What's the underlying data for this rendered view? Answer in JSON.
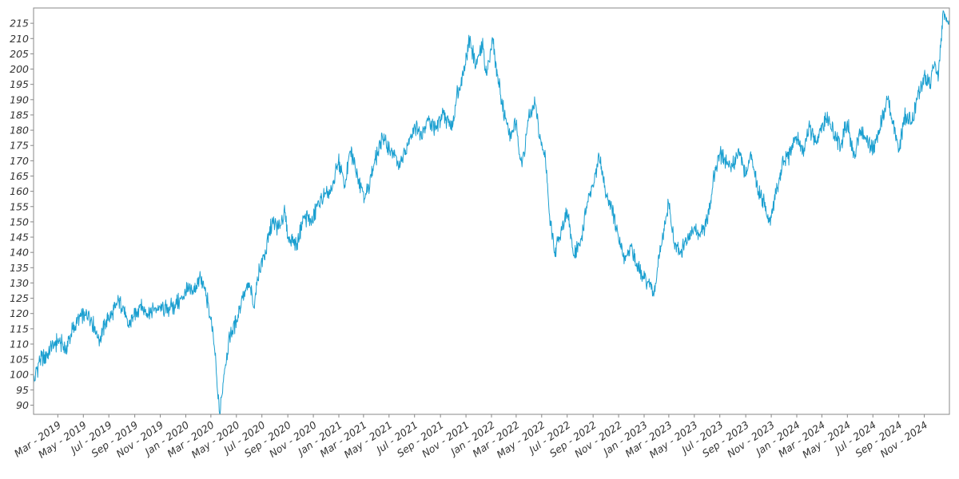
{
  "chart_data": {
    "type": "line",
    "title": "",
    "xlabel": "",
    "ylabel": "",
    "x_range": [
      "2019-01-02",
      "2024-12-31"
    ],
    "ylim": [
      87,
      220
    ],
    "grid": false,
    "legend": "none",
    "y_ticks": [
      90,
      95,
      100,
      105,
      110,
      115,
      120,
      125,
      130,
      135,
      140,
      145,
      150,
      155,
      160,
      165,
      170,
      175,
      180,
      185,
      190,
      195,
      200,
      205,
      210,
      215
    ],
    "x_ticks": [
      {
        "date": "2019-03-01",
        "label": "Mar - 2019"
      },
      {
        "date": "2019-05-01",
        "label": "May - 2019"
      },
      {
        "date": "2019-07-01",
        "label": "Jul - 2019"
      },
      {
        "date": "2019-09-01",
        "label": "Sep - 2019"
      },
      {
        "date": "2019-11-01",
        "label": "Nov - 2019"
      },
      {
        "date": "2020-01-01",
        "label": "Jan - 2020"
      },
      {
        "date": "2020-03-01",
        "label": "Mar - 2020"
      },
      {
        "date": "2020-05-01",
        "label": "May - 2020"
      },
      {
        "date": "2020-07-01",
        "label": "Jul - 2020"
      },
      {
        "date": "2020-09-01",
        "label": "Sep - 2020"
      },
      {
        "date": "2020-11-01",
        "label": "Nov - 2020"
      },
      {
        "date": "2021-01-01",
        "label": "Jan - 2021"
      },
      {
        "date": "2021-03-01",
        "label": "Mar - 2021"
      },
      {
        "date": "2021-05-01",
        "label": "May - 2021"
      },
      {
        "date": "2021-07-01",
        "label": "Jul - 2021"
      },
      {
        "date": "2021-09-01",
        "label": "Sep - 2021"
      },
      {
        "date": "2021-11-01",
        "label": "Nov - 2021"
      },
      {
        "date": "2022-01-01",
        "label": "Jan - 2022"
      },
      {
        "date": "2022-03-01",
        "label": "Mar - 2022"
      },
      {
        "date": "2022-05-01",
        "label": "May - 2022"
      },
      {
        "date": "2022-07-01",
        "label": "Jul - 2022"
      },
      {
        "date": "2022-09-01",
        "label": "Sep - 2022"
      },
      {
        "date": "2022-11-01",
        "label": "Nov - 2022"
      },
      {
        "date": "2023-01-01",
        "label": "Jan - 2023"
      },
      {
        "date": "2023-03-01",
        "label": "Mar - 2023"
      },
      {
        "date": "2023-05-01",
        "label": "May - 2023"
      },
      {
        "date": "2023-07-01",
        "label": "Jul - 2023"
      },
      {
        "date": "2023-09-01",
        "label": "Sep - 2023"
      },
      {
        "date": "2023-11-01",
        "label": "Nov - 2023"
      },
      {
        "date": "2024-01-01",
        "label": "Jan - 2024"
      },
      {
        "date": "2024-03-01",
        "label": "Mar - 2024"
      },
      {
        "date": "2024-05-01",
        "label": "May - 2024"
      },
      {
        "date": "2024-07-01",
        "label": "Jul - 2024"
      },
      {
        "date": "2024-09-01",
        "label": "Sep - 2024"
      },
      {
        "date": "2024-11-01",
        "label": "Nov - 2024"
      }
    ],
    "series": [
      {
        "color": "#1a9fd0",
        "x": [
          "2019-01-02",
          "2019-01-15",
          "2019-02-01",
          "2019-02-20",
          "2019-03-05",
          "2019-03-20",
          "2019-04-05",
          "2019-04-25",
          "2019-05-15",
          "2019-05-31",
          "2019-06-10",
          "2019-06-25",
          "2019-07-10",
          "2019-07-25",
          "2019-08-05",
          "2019-08-15",
          "2019-08-30",
          "2019-09-15",
          "2019-10-01",
          "2019-10-20",
          "2019-11-05",
          "2019-11-25",
          "2019-12-10",
          "2019-12-31",
          "2020-01-20",
          "2020-02-05",
          "2020-02-19",
          "2020-03-01",
          "2020-03-10",
          "2020-03-16",
          "2020-03-23",
          "2020-04-01",
          "2020-04-15",
          "2020-05-01",
          "2020-05-15",
          "2020-06-01",
          "2020-06-11",
          "2020-06-25",
          "2020-07-10",
          "2020-07-25",
          "2020-08-10",
          "2020-08-25",
          "2020-09-02",
          "2020-09-23",
          "2020-10-10",
          "2020-10-30",
          "2020-11-10",
          "2020-11-25",
          "2020-12-15",
          "2020-12-31",
          "2021-01-15",
          "2021-01-29",
          "2021-02-15",
          "2021-03-05",
          "2021-03-25",
          "2021-04-15",
          "2021-05-12",
          "2021-05-25",
          "2021-06-15",
          "2021-07-01",
          "2021-07-15",
          "2021-08-01",
          "2021-08-20",
          "2021-09-05",
          "2021-09-30",
          "2021-10-10",
          "2021-10-25",
          "2021-11-10",
          "2021-11-25",
          "2021-12-10",
          "2021-12-20",
          "2022-01-04",
          "2022-01-15",
          "2022-02-01",
          "2022-02-15",
          "2022-03-01",
          "2022-03-15",
          "2022-03-30",
          "2022-04-15",
          "2022-04-30",
          "2022-05-10",
          "2022-05-20",
          "2022-06-01",
          "2022-06-16",
          "2022-07-01",
          "2022-07-15",
          "2022-08-01",
          "2022-08-16",
          "2022-09-01",
          "2022-09-15",
          "2022-09-30",
          "2022-10-15",
          "2022-11-01",
          "2022-11-15",
          "2022-12-01",
          "2022-12-15",
          "2022-12-28",
          "2023-01-10",
          "2023-01-25",
          "2023-02-02",
          "2023-02-15",
          "2023-03-01",
          "2023-03-13",
          "2023-03-30",
          "2023-04-15",
          "2023-05-01",
          "2023-05-15",
          "2023-06-01",
          "2023-06-15",
          "2023-07-01",
          "2023-07-31",
          "2023-08-15",
          "2023-09-01",
          "2023-09-15",
          "2023-10-01",
          "2023-10-15",
          "2023-10-27",
          "2023-11-15",
          "2023-12-01",
          "2023-12-15",
          "2023-12-31",
          "2024-01-15",
          "2024-02-01",
          "2024-02-15",
          "2024-03-01",
          "2024-03-15",
          "2024-03-31",
          "2024-04-15",
          "2024-05-01",
          "2024-05-15",
          "2024-06-01",
          "2024-06-15",
          "2024-07-01",
          "2024-07-16",
          "2024-08-05",
          "2024-08-15",
          "2024-09-01",
          "2024-09-15",
          "2024-10-01",
          "2024-10-15",
          "2024-11-01",
          "2024-11-15",
          "2024-11-25",
          "2024-12-05",
          "2024-12-15",
          "2024-12-31"
        ],
        "values": [
          97,
          104,
          106,
          110,
          111,
          108,
          115,
          119,
          120,
          114,
          111,
          118,
          120,
          124,
          122,
          116,
          119,
          123,
          120,
          122,
          121,
          122,
          123,
          127,
          128,
          132,
          126,
          118,
          108,
          96,
          87,
          100,
          112,
          118,
          125,
          130,
          122,
          135,
          140,
          150,
          148,
          153,
          145,
          143,
          152,
          150,
          155,
          158,
          160,
          170,
          162,
          173,
          165,
          158,
          168,
          178,
          172,
          168,
          175,
          182,
          178,
          184,
          180,
          185,
          181,
          192,
          198,
          210,
          201,
          208,
          198,
          210,
          198,
          185,
          178,
          182,
          168,
          183,
          189,
          175,
          171,
          152,
          140,
          147,
          154,
          140,
          142,
          155,
          162,
          172,
          160,
          155,
          144,
          138,
          142,
          135,
          132,
          130,
          127,
          135,
          145,
          156,
          143,
          140,
          145,
          148,
          145,
          150,
          164,
          172,
          168,
          174,
          165,
          172,
          160,
          157,
          150,
          161,
          170,
          172,
          178,
          173,
          181,
          176,
          182,
          184,
          178,
          175,
          183,
          171,
          180,
          177,
          174,
          180,
          190,
          184,
          173,
          185,
          182,
          190,
          198,
          195,
          201,
          198,
          218,
          215
        ]
      }
    ]
  }
}
